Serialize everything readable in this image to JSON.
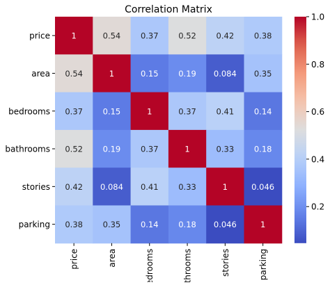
{
  "chart_data": {
    "type": "heatmap",
    "title": "Correlation Matrix",
    "row_labels": [
      "price",
      "area",
      "bedrooms",
      "bathrooms",
      "stories",
      "parking"
    ],
    "col_labels": [
      "price",
      "area",
      "bedrooms",
      "bathrooms",
      "stories",
      "parking"
    ],
    "values": [
      [
        1,
        0.54,
        0.37,
        0.52,
        0.42,
        0.38
      ],
      [
        0.54,
        1,
        0.15,
        0.19,
        0.084,
        0.35
      ],
      [
        0.37,
        0.15,
        1,
        0.37,
        0.41,
        0.14
      ],
      [
        0.52,
        0.19,
        0.37,
        1,
        0.33,
        0.18
      ],
      [
        0.42,
        0.084,
        0.41,
        0.33,
        1,
        0.046
      ],
      [
        0.38,
        0.35,
        0.14,
        0.18,
        0.046,
        1
      ]
    ],
    "cell_labels": [
      [
        "1",
        "0.54",
        "0.37",
        "0.52",
        "0.42",
        "0.38"
      ],
      [
        "0.54",
        "1",
        "0.15",
        "0.19",
        "0.084",
        "0.35"
      ],
      [
        "0.37",
        "0.15",
        "1",
        "0.37",
        "0.41",
        "0.14"
      ],
      [
        "0.52",
        "0.19",
        "0.37",
        "1",
        "0.33",
        "0.18"
      ],
      [
        "0.42",
        "0.084",
        "0.41",
        "0.33",
        "1",
        "0.046"
      ],
      [
        "0.38",
        "0.35",
        "0.14",
        "0.18",
        "0.046",
        "1"
      ]
    ],
    "colormap": "coolwarm",
    "colorbar": {
      "range": [
        0.046,
        1
      ],
      "ticks": [
        0.2,
        0.4,
        0.6,
        0.8,
        1.0
      ],
      "tick_labels": [
        "0.2",
        "0.4",
        "0.6",
        "0.8",
        "1.0"
      ]
    },
    "xlabel": "",
    "ylabel": "",
    "grid": false
  }
}
